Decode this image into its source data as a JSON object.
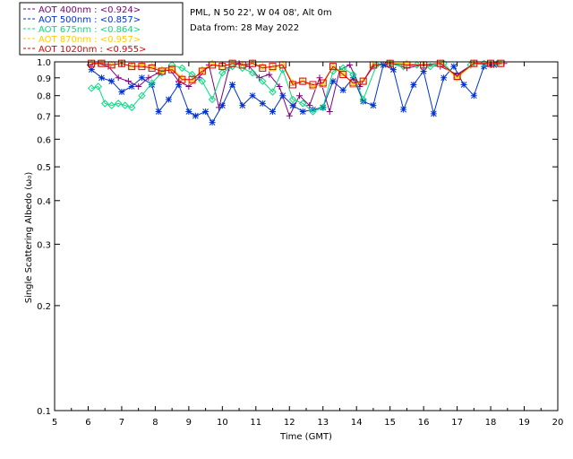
{
  "header": {
    "site_line": "PML, N 50 22', W 04 08', Alt 0m",
    "date_line": "Data from: 28 May 2022"
  },
  "legend": [
    {
      "label": "AOT  400nm : <0.924>",
      "color": "#800080",
      "marker": "plus"
    },
    {
      "label": "AOT  500nm : <0.857>",
      "color": "#0033cc",
      "marker": "star"
    },
    {
      "label": "AOT  675nm : <0.864>",
      "color": "#00e080",
      "marker": "diamond"
    },
    {
      "label": "AOT  870nm : <0.957>",
      "color": "#ffcc00",
      "marker": "triangle"
    },
    {
      "label": "AOT 1020nm : <0.955>",
      "color": "#e00000",
      "marker": "square"
    }
  ],
  "chart_data": {
    "type": "scatter",
    "xlabel": "Time (GMT)",
    "ylabel": "Single Scattering Albedo (ω₀)",
    "xlim": [
      5,
      20
    ],
    "ylim": [
      0.1,
      1.0
    ],
    "yscale": "log",
    "xticks": [
      "5",
      "6",
      "7",
      "8",
      "9",
      "10",
      "11",
      "12",
      "13",
      "14",
      "15",
      "16",
      "17",
      "18",
      "19",
      "20"
    ],
    "yticks": [
      "0.1",
      "0.2",
      "0.3",
      "0.4",
      "0.5",
      "0.6",
      "0.7",
      "0.8",
      "0.9",
      "1.0"
    ],
    "series": [
      {
        "name": "AOT 400nm",
        "x": [
          6.05,
          6.3,
          6.6,
          6.9,
          7.2,
          7.5,
          7.8,
          8.1,
          8.4,
          8.7,
          9.0,
          9.3,
          9.6,
          9.9,
          10.2,
          10.5,
          10.8,
          11.1,
          11.4,
          11.7,
          12.0,
          12.3,
          12.6,
          12.9,
          13.2,
          13.5,
          13.8,
          14.1,
          14.5,
          15.0,
          15.5,
          16.0,
          16.5,
          17.0,
          17.5,
          18.0,
          18.4
        ],
        "y": [
          0.98,
          0.99,
          0.97,
          0.9,
          0.88,
          0.85,
          0.9,
          0.93,
          0.96,
          0.88,
          0.85,
          0.9,
          0.98,
          0.74,
          0.96,
          0.99,
          0.97,
          0.9,
          0.92,
          0.85,
          0.7,
          0.8,
          0.75,
          0.9,
          0.72,
          0.95,
          0.98,
          0.85,
          0.97,
          0.99,
          0.96,
          0.98,
          0.97,
          0.92,
          0.99,
          0.98,
          0.99
        ]
      },
      {
        "name": "AOT 500nm",
        "x": [
          6.1,
          6.4,
          6.7,
          7.0,
          7.3,
          7.6,
          7.9,
          8.1,
          8.4,
          8.7,
          9.0,
          9.2,
          9.5,
          9.7,
          10.0,
          10.3,
          10.6,
          10.9,
          11.2,
          11.5,
          11.8,
          12.1,
          12.4,
          12.7,
          13.0,
          13.3,
          13.6,
          13.9,
          14.2,
          14.5,
          14.8,
          15.1,
          15.4,
          15.7,
          16.0,
          16.3,
          16.6,
          16.9,
          17.2,
          17.5,
          17.8,
          18.1
        ],
        "y": [
          0.95,
          0.9,
          0.88,
          0.82,
          0.85,
          0.9,
          0.86,
          0.72,
          0.78,
          0.86,
          0.72,
          0.7,
          0.72,
          0.67,
          0.75,
          0.86,
          0.75,
          0.8,
          0.76,
          0.72,
          0.8,
          0.75,
          0.72,
          0.73,
          0.74,
          0.88,
          0.83,
          0.9,
          0.77,
          0.75,
          0.98,
          0.95,
          0.73,
          0.86,
          0.94,
          0.71,
          0.9,
          0.97,
          0.86,
          0.8,
          0.97,
          0.98
        ]
      },
      {
        "name": "AOT 675nm",
        "x": [
          6.1,
          6.3,
          6.5,
          6.7,
          6.9,
          7.1,
          7.3,
          7.6,
          7.9,
          8.2,
          8.5,
          8.8,
          9.1,
          9.4,
          9.7,
          10.0,
          10.3,
          10.6,
          10.9,
          11.2,
          11.5,
          11.8,
          12.1,
          12.4,
          12.7,
          13.0,
          13.3,
          13.6,
          13.9,
          14.2,
          14.6,
          15.0,
          15.4,
          15.8,
          16.2,
          16.6,
          17.0,
          17.4,
          17.8,
          18.2
        ],
        "y": [
          0.84,
          0.85,
          0.76,
          0.75,
          0.76,
          0.75,
          0.74,
          0.8,
          0.87,
          0.93,
          0.98,
          0.96,
          0.92,
          0.88,
          0.78,
          0.93,
          0.97,
          0.96,
          0.93,
          0.88,
          0.82,
          0.95,
          0.78,
          0.76,
          0.72,
          0.74,
          0.94,
          0.96,
          0.92,
          0.78,
          0.98,
          0.99,
          0.97,
          0.98,
          0.97,
          0.99,
          0.9,
          0.98,
          0.99,
          0.99
        ]
      },
      {
        "name": "AOT 870nm",
        "x": [
          6.1,
          6.4,
          6.7,
          7.0,
          7.3,
          7.6,
          7.9,
          8.2,
          8.5,
          8.8,
          9.1,
          9.4,
          9.7,
          10.0,
          10.3,
          10.6,
          10.9,
          11.2,
          11.5,
          11.8,
          12.1,
          12.4,
          12.7,
          13.0,
          13.3,
          13.6,
          13.9,
          14.2,
          14.5,
          15.0,
          15.5,
          16.0,
          16.5,
          17.0,
          17.5,
          18.0,
          18.3
        ],
        "y": [
          0.99,
          0.99,
          0.98,
          0.99,
          0.97,
          0.98,
          0.97,
          0.95,
          0.96,
          0.9,
          0.88,
          0.95,
          0.99,
          0.97,
          0.99,
          0.98,
          0.99,
          0.97,
          0.96,
          0.98,
          0.87,
          0.88,
          0.85,
          0.86,
          0.97,
          0.93,
          0.86,
          0.88,
          0.98,
          0.99,
          0.99,
          0.98,
          0.99,
          0.9,
          0.99,
          0.99,
          0.99
        ]
      },
      {
        "name": "AOT 1020nm",
        "x": [
          6.1,
          6.4,
          6.7,
          7.0,
          7.3,
          7.6,
          7.9,
          8.2,
          8.5,
          8.8,
          9.1,
          9.4,
          9.7,
          10.0,
          10.3,
          10.6,
          10.9,
          11.2,
          11.5,
          11.8,
          12.1,
          12.4,
          12.7,
          13.0,
          13.3,
          13.6,
          13.9,
          14.2,
          14.5,
          15.0,
          15.5,
          16.0,
          16.5,
          17.0,
          17.5,
          18.0,
          18.3
        ],
        "y": [
          0.99,
          0.99,
          0.98,
          0.99,
          0.97,
          0.97,
          0.96,
          0.94,
          0.95,
          0.89,
          0.89,
          0.94,
          0.98,
          0.97,
          0.99,
          0.98,
          0.99,
          0.96,
          0.97,
          0.98,
          0.86,
          0.88,
          0.86,
          0.87,
          0.97,
          0.92,
          0.87,
          0.88,
          0.98,
          0.99,
          0.98,
          0.98,
          0.99,
          0.91,
          0.99,
          0.99,
          0.99
        ]
      }
    ]
  }
}
